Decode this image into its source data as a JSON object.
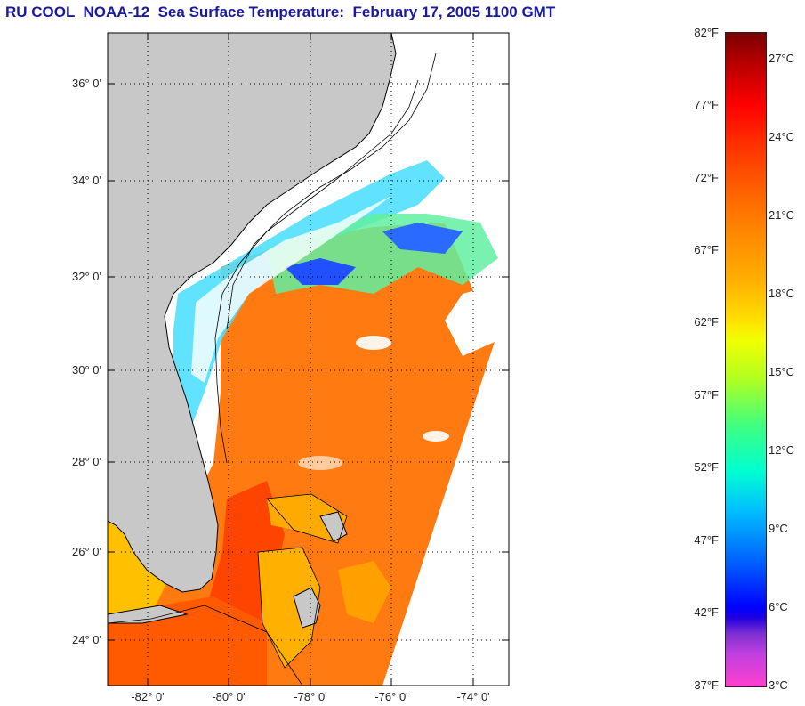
{
  "title": "RU COOL  NOAA-12  Sea Surface Temperature:  February 17, 2005 1100 GMT",
  "map": {
    "latitude_labels": [
      "36° 0'",
      "34° 0'",
      "32° 0'",
      "30° 0'",
      "28° 0'",
      "26° 0'",
      "24° 0'"
    ],
    "longitude_labels": [
      "-82° 0'",
      "-80° 0'",
      "-78° 0'",
      "-76° 0'",
      "-74° 0'"
    ],
    "grid": "dotted",
    "colors": {
      "land": "#c8c8c8",
      "cloud": "#ffffff",
      "coast": "#000000"
    }
  },
  "colorbar": {
    "fahrenheit_labels": [
      "82°F",
      "77°F",
      "72°F",
      "67°F",
      "62°F",
      "57°F",
      "52°F",
      "47°F",
      "42°F",
      "37°F"
    ],
    "celsius_labels": [
      "27°C",
      "24°C",
      "21°C",
      "18°C",
      "15°C",
      "12°C",
      "9°C",
      "6°C",
      "3°C"
    ],
    "range_f": [
      37,
      82
    ],
    "colors": [
      "#7a0000",
      "#ff0000",
      "#ff8a00",
      "#ffe000",
      "#b0ff20",
      "#00ffd0",
      "#0060ff",
      "#0000ff",
      "#ff40d0"
    ]
  }
}
